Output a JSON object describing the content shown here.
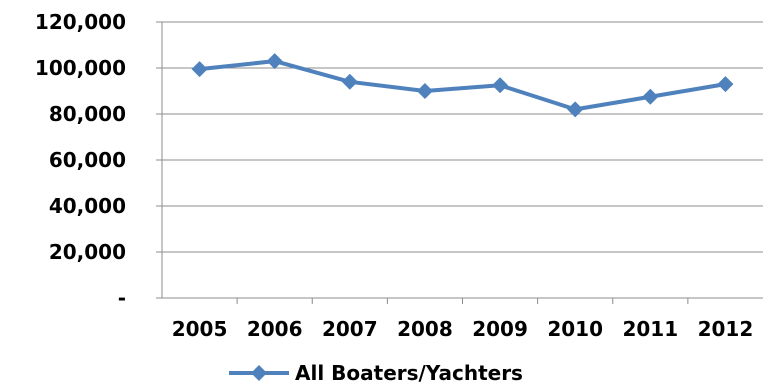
{
  "chart_data": {
    "type": "line",
    "title": "",
    "xlabel": "",
    "ylabel": "",
    "categories": [
      "2005",
      "2006",
      "2007",
      "2008",
      "2009",
      "2010",
      "2011",
      "2012"
    ],
    "series": [
      {
        "name": "All Boaters/Yachters",
        "values": [
          99500,
          103000,
          94000,
          90000,
          92500,
          82000,
          87500,
          93000
        ]
      }
    ],
    "ylim": [
      0,
      120000
    ],
    "y_ticks": [
      0,
      20000,
      40000,
      60000,
      80000,
      100000,
      120000
    ],
    "y_tick_labels": [
      "-",
      "20,000",
      "40,000",
      "60,000",
      "80,000",
      "100,000",
      "120,000"
    ],
    "grid": "horizontal",
    "legend_position": "bottom",
    "series_color": "#4F81BD",
    "marker": "diamond"
  }
}
